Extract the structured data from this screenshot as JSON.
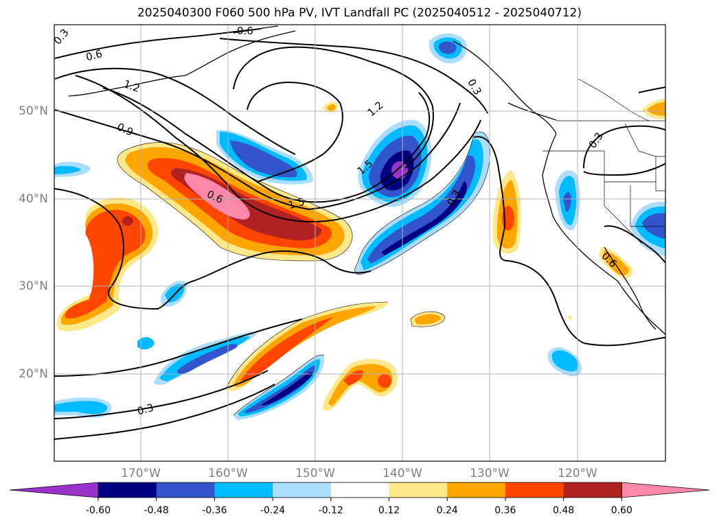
{
  "title": "2025040300 F060 500 hPa PV, IVT Landfall PC (2025040512 - 2025040712)",
  "map": {
    "lat_ticks": [
      "50°N",
      "40°N",
      "30°N",
      "20°N"
    ],
    "lon_ticks": [
      "170°W",
      "160°W",
      "150°W",
      "140°W",
      "130°W",
      "120°W"
    ],
    "contour_labels": [
      "0.3",
      "0.6",
      "1.2",
      "0.9",
      "0.6",
      "1.5",
      "1.2",
      "1.5",
      "0.3",
      "0.3",
      "0.3",
      "0.6",
      "0.3",
      "0.6"
    ]
  },
  "colorbar": {
    "colors": [
      "#9933cc",
      "#000080",
      "#3355cc",
      "#00bbff",
      "#aaddff",
      "#ffffff",
      "#ffe88a",
      "#ffa500",
      "#ff4500",
      "#b22222",
      "#ff88aa"
    ],
    "tick_labels": [
      "-0.60",
      "-0.48",
      "-0.36",
      "-0.24",
      "-0.12",
      "0.12",
      "0.24",
      "0.36",
      "0.48",
      "0.60"
    ]
  }
}
